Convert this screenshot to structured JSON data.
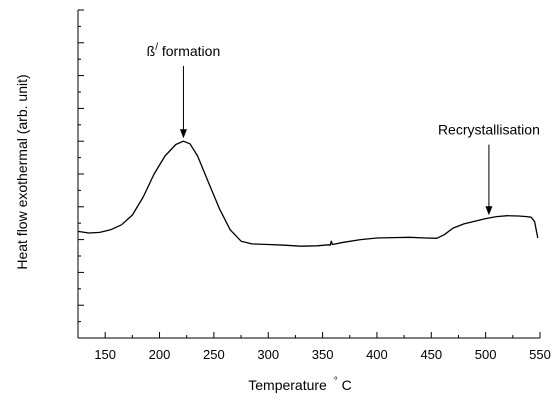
{
  "chart_data": {
    "type": "line",
    "title": "",
    "xlabel": "Temperature",
    "xlabel_unit": "°C",
    "ylabel": "Heat flow exothermal (arb. unit)",
    "xlim": [
      125,
      550
    ],
    "xticks": [
      150,
      200,
      250,
      300,
      350,
      400,
      450,
      500,
      550
    ],
    "ylim": [
      0,
      1
    ],
    "y_tick_labels": "none",
    "grid": false,
    "legend": "none",
    "series": [
      {
        "color": "#000000",
        "points": [
          [
            125,
            0.325
          ],
          [
            135,
            0.32
          ],
          [
            145,
            0.322
          ],
          [
            155,
            0.33
          ],
          [
            165,
            0.345
          ],
          [
            175,
            0.375
          ],
          [
            185,
            0.43
          ],
          [
            195,
            0.5
          ],
          [
            205,
            0.555
          ],
          [
            215,
            0.59
          ],
          [
            222,
            0.6
          ],
          [
            228,
            0.592
          ],
          [
            235,
            0.555
          ],
          [
            245,
            0.475
          ],
          [
            255,
            0.395
          ],
          [
            265,
            0.33
          ],
          [
            275,
            0.295
          ],
          [
            285,
            0.287
          ],
          [
            300,
            0.285
          ],
          [
            315,
            0.283
          ],
          [
            330,
            0.28
          ],
          [
            345,
            0.281
          ],
          [
            355,
            0.284
          ],
          [
            357,
            0.283
          ],
          [
            358,
            0.295
          ],
          [
            359,
            0.285
          ],
          [
            370,
            0.292
          ],
          [
            385,
            0.3
          ],
          [
            400,
            0.305
          ],
          [
            415,
            0.306
          ],
          [
            430,
            0.307
          ],
          [
            445,
            0.305
          ],
          [
            455,
            0.304
          ],
          [
            462,
            0.315
          ],
          [
            470,
            0.335
          ],
          [
            480,
            0.348
          ],
          [
            490,
            0.356
          ],
          [
            500,
            0.364
          ],
          [
            510,
            0.37
          ],
          [
            520,
            0.373
          ],
          [
            530,
            0.372
          ],
          [
            538,
            0.37
          ],
          [
            542,
            0.368
          ],
          [
            545,
            0.355
          ],
          [
            548,
            0.305
          ]
        ]
      }
    ],
    "annotations": [
      {
        "id": "beta",
        "symbol": "ß",
        "superscript": "/",
        "text": " formation",
        "x": 222,
        "y": 0.6,
        "label_y": 0.86
      },
      {
        "id": "recryst",
        "symbol": "",
        "superscript": "",
        "text": "Recrystallisation",
        "x": 503,
        "y": 0.365,
        "label_y": 0.62
      }
    ]
  }
}
